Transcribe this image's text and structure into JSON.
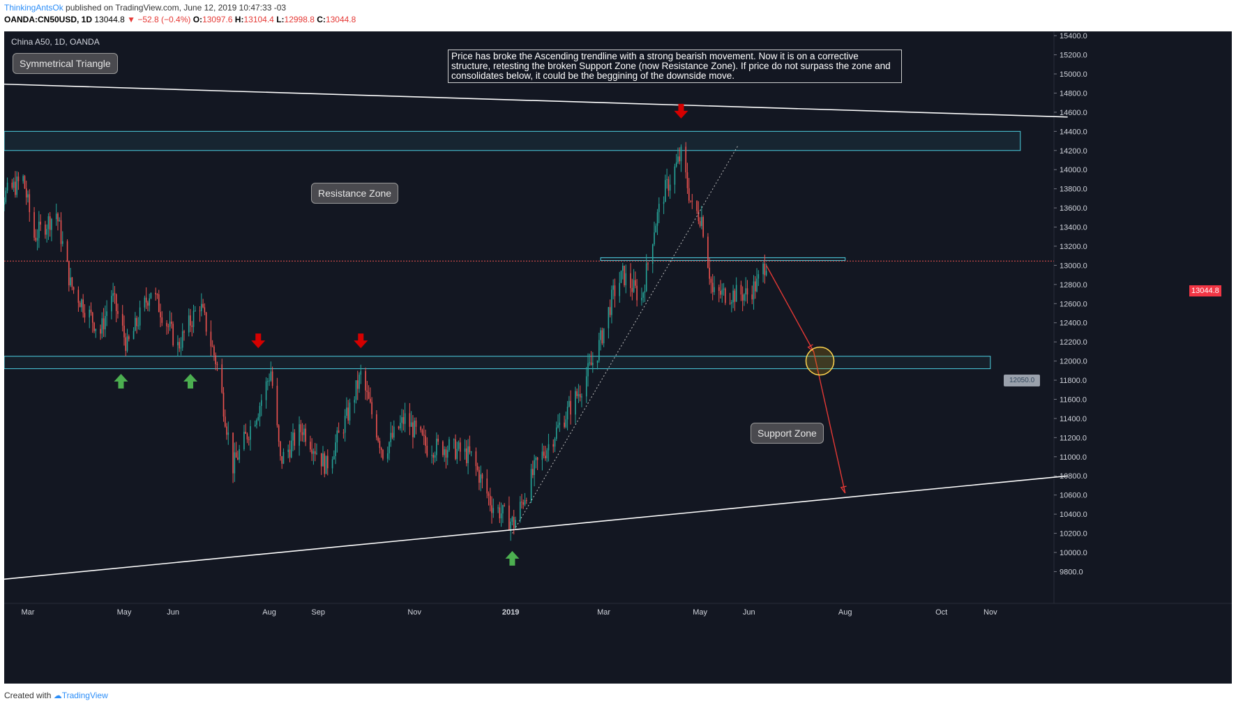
{
  "header": {
    "author": "ThinkingAntsOk",
    "published": " published on TradingView.com, June 12, 2019 10:47:33 -03",
    "symbol": "OANDA:CN50USD, 1D",
    "last": "13044.8",
    "change": "▼ −52.8 (−0.4%)",
    "o_label": "O:",
    "o": "13097.6",
    "h_label": "H:",
    "h": "13104.4",
    "l_label": "L:",
    "l": "12998.8",
    "c_label": "C:",
    "c": "13044.8"
  },
  "legend_title": "China A50, 1D, OANDA",
  "footer": {
    "created": "Created with",
    "brand": "TradingView"
  },
  "annotations": {
    "symmetrical_triangle": "Symmetrical Triangle",
    "resistance_zone": "Resistance Zone",
    "support_zone": "Support Zone",
    "note": "Price has broke the Ascending trendline with a strong bearish movement. Now it is on a corrective structure, retesting the broken Support Zone (now Resistance Zone). If price do not surpass the zone and consolidates below, it could be the beggining of the downside move.",
    "price_tag": "13044.8",
    "level_tag": "12050.0"
  },
  "colors": {
    "background": "#131722",
    "up": "#26a69a",
    "down": "#ef5350",
    "zone_border": "#4dd0e1",
    "arrow_red": "#d50000",
    "arrow_green": "#4caf50",
    "projection": "#e53935",
    "circle_fill": "#b8860b",
    "circle_stroke": "#ffd54f"
  },
  "chart_data": {
    "type": "candlestick",
    "title": "China A50, 1D, OANDA",
    "xlabel": "",
    "ylabel": "",
    "ylim": [
      9600,
      15500
    ],
    "y_ticks": [
      9800,
      10000,
      10200,
      10400,
      10600,
      10800,
      11000,
      11200,
      11400,
      11600,
      11800,
      12000,
      12200,
      12400,
      12600,
      12800,
      13000,
      13200,
      13400,
      13600,
      13800,
      14000,
      14200,
      14400,
      14600,
      14800,
      15000,
      15200,
      15400
    ],
    "y_tick_labels": [
      "9800.0",
      "10000.0",
      "10200.0",
      "10400.0",
      "10600.0",
      "10800.0",
      "11000.0",
      "11200.0",
      "11400.0",
      "11600.0",
      "11800.0",
      "12000.0",
      "12200.0",
      "12400.0",
      "12600.0",
      "12800.0",
      "13000.0",
      "13200.0",
      "13400.0",
      "13600.0",
      "13800.0",
      "14000.0",
      "14200.0",
      "14400.0",
      "14600.0",
      "14800.0",
      "15000.0",
      "15200.0",
      "15400.0"
    ],
    "x_ticks": [
      "Mar",
      "May",
      "Jun",
      "Aug",
      "Sep",
      "Nov",
      "2019",
      "Mar",
      "May",
      "Jun",
      "Aug",
      "Oct",
      "Nov"
    ],
    "grid": false,
    "last_price": 13044.8,
    "waypoints": [
      {
        "date": "2018-02-12",
        "close": 13700
      },
      {
        "date": "2018-02-26",
        "close": 13900
      },
      {
        "date": "2018-03-05",
        "close": 13300
      },
      {
        "date": "2018-03-19",
        "close": 13550
      },
      {
        "date": "2018-03-28",
        "close": 12800
      },
      {
        "date": "2018-04-16",
        "close": 12300
      },
      {
        "date": "2018-04-23",
        "close": 12700
      },
      {
        "date": "2018-05-03",
        "close": 12150
      },
      {
        "date": "2018-05-18",
        "close": 12750
      },
      {
        "date": "2018-06-04",
        "close": 12150
      },
      {
        "date": "2018-06-18",
        "close": 12600
      },
      {
        "date": "2018-06-29",
        "close": 11950
      },
      {
        "date": "2018-07-09",
        "close": 10900
      },
      {
        "date": "2018-07-25",
        "close": 11500
      },
      {
        "date": "2018-08-02",
        "close": 11900
      },
      {
        "date": "2018-08-08",
        "close": 10950
      },
      {
        "date": "2018-08-22",
        "close": 11300
      },
      {
        "date": "2018-09-06",
        "close": 10900
      },
      {
        "date": "2018-09-20",
        "close": 11450
      },
      {
        "date": "2018-09-28",
        "close": 11850
      },
      {
        "date": "2018-10-12",
        "close": 11050
      },
      {
        "date": "2018-10-26",
        "close": 11400
      },
      {
        "date": "2018-11-09",
        "close": 11100
      },
      {
        "date": "2018-11-23",
        "close": 11100
      },
      {
        "date": "2018-12-07",
        "close": 11000
      },
      {
        "date": "2018-12-20",
        "close": 10500
      },
      {
        "date": "2019-01-03",
        "close": 10300
      },
      {
        "date": "2019-01-17",
        "close": 10900
      },
      {
        "date": "2019-01-31",
        "close": 11300
      },
      {
        "date": "2019-02-14",
        "close": 11700
      },
      {
        "date": "2019-02-25",
        "close": 12100
      },
      {
        "date": "2019-03-07",
        "close": 12700
      },
      {
        "date": "2019-03-13",
        "close": 12900
      },
      {
        "date": "2019-03-25",
        "close": 12650
      },
      {
        "date": "2019-04-02",
        "close": 13400
      },
      {
        "date": "2019-04-08",
        "close": 13750
      },
      {
        "date": "2019-04-19",
        "close": 14150
      },
      {
        "date": "2019-04-26",
        "close": 13600
      },
      {
        "date": "2019-05-02",
        "close": 13500
      },
      {
        "date": "2019-05-09",
        "close": 12700
      },
      {
        "date": "2019-05-20",
        "close": 12700
      },
      {
        "date": "2019-05-31",
        "close": 12700
      },
      {
        "date": "2019-06-06",
        "close": 12800
      },
      {
        "date": "2019-06-12",
        "close": 13044.8
      }
    ],
    "zones": [
      {
        "name": "Resistance Zone",
        "low": 14200,
        "high": 14400,
        "from": "2018-02-01",
        "to": "2019-11-20"
      },
      {
        "name": "Support Zone",
        "low": 11920,
        "high": 12050,
        "from": "2018-02-01",
        "to": "2019-11-01"
      },
      {
        "name": "Retest Zone",
        "low": 13050,
        "high": 13080,
        "from": "2019-02-27",
        "to": "2019-08-01"
      }
    ],
    "trendlines": [
      {
        "name": "upper-triangle",
        "from": {
          "date": "2018-02-01",
          "y": 14900
        },
        "to": {
          "date": "2019-12-20",
          "y": 14550
        }
      },
      {
        "name": "lower-triangle",
        "from": {
          "date": "2018-02-01",
          "y": 9700
        },
        "to": {
          "date": "2019-12-20",
          "y": 10800
        }
      },
      {
        "name": "ascending-trendline",
        "from": {
          "date": "2019-01-02",
          "y": 10200
        },
        "to": {
          "date": "2019-05-25",
          "y": 14250
        }
      }
    ],
    "projection": [
      {
        "date": "2019-06-12",
        "y": 13000
      },
      {
        "date": "2019-07-12",
        "y": 12100
      },
      {
        "date": "2019-08-01",
        "y": 10620
      }
    ],
    "target_circle": {
      "date": "2019-07-16",
      "y": 12000
    },
    "markers": [
      {
        "type": "down",
        "date": "2018-07-25",
        "y": 12200
      },
      {
        "type": "down",
        "date": "2018-09-28",
        "y": 12200
      },
      {
        "type": "down",
        "date": "2019-04-19",
        "y": 14600
      },
      {
        "type": "up",
        "date": "2018-04-29",
        "y": 11800
      },
      {
        "type": "up",
        "date": "2018-06-12",
        "y": 11800
      },
      {
        "type": "up",
        "date": "2019-01-02",
        "y": 9950
      }
    ]
  }
}
